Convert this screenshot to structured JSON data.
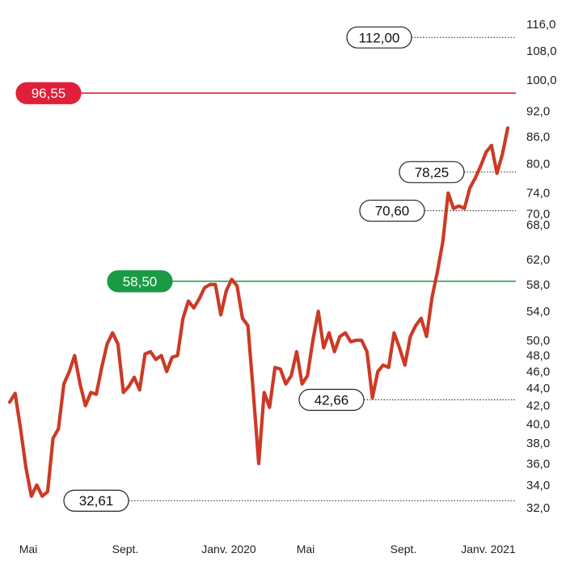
{
  "chart_data": {
    "type": "line",
    "title": "",
    "xlabel": "",
    "ylabel": "",
    "x_tick_labels": [
      "Mai",
      "Sept.",
      "Janv. 2020",
      "Mai",
      "Sept.",
      "Janv. 2021"
    ],
    "y_tick_labels": [
      "116,0",
      "108,0",
      "100,0",
      "92,0",
      "86,0",
      "80,0",
      "74,0",
      "70,0",
      "68,0",
      "62,0",
      "58,0",
      "54,0",
      "50,0",
      "48,0",
      "46,0",
      "44,0",
      "42,0",
      "40,0",
      "38,0",
      "36,0",
      "34,0",
      "32,0"
    ],
    "y_tick_values": [
      116,
      108,
      100,
      92,
      86,
      80,
      74,
      70,
      68,
      62,
      58,
      54,
      50,
      48,
      46,
      44,
      42,
      40,
      38,
      36,
      34,
      32
    ],
    "y_scale": "log",
    "ylim": [
      31.2,
      119
    ],
    "line_color": "#cc3a25",
    "series": [
      {
        "values": [
          42.4,
          43.4,
          39.5,
          35.6,
          33.0,
          34.0,
          33.0,
          33.4,
          38.5,
          39.5,
          44.5,
          46.0,
          48.0,
          44.5,
          42.0,
          43.5,
          43.3,
          46.5,
          49.5,
          51.0,
          49.5,
          43.5,
          44.2,
          45.3,
          43.8,
          48.2,
          48.5,
          47.5,
          48.0,
          46.0,
          47.8,
          48.0,
          53.0,
          55.5,
          54.5,
          55.8,
          57.5,
          58.0,
          58.0,
          53.5,
          57.0,
          58.8,
          57.8,
          53.0,
          52.0,
          43.5,
          36.0,
          43.5,
          41.8,
          46.5,
          46.3,
          44.5,
          45.5,
          48.5,
          44.5,
          45.5,
          50.0,
          54.0,
          49.0,
          51.0,
          48.5,
          50.5,
          51.0,
          49.8,
          50.0,
          50.0,
          48.5,
          42.9,
          46.0,
          46.8,
          46.5,
          51.0,
          49.0,
          46.8,
          50.5,
          52.0,
          53.0,
          50.5,
          56.0,
          60.0,
          65.0,
          74.0,
          71.0,
          71.5,
          71.0,
          75.0,
          77.0,
          79.5,
          82.5,
          84.0,
          78.0,
          82.0,
          88.0
        ]
      }
    ],
    "reference_lines": [
      {
        "value": 112.0,
        "label": "112,00",
        "style": "dotted",
        "color": "#222222",
        "label_fill": "#ffffff"
      },
      {
        "value": 96.55,
        "label": "96,55",
        "style": "solid",
        "color": "#e0203a",
        "label_fill": "#e0203a"
      },
      {
        "value": 78.25,
        "label": "78,25",
        "style": "dotted",
        "color": "#222222",
        "label_fill": "#ffffff"
      },
      {
        "value": 70.6,
        "label": "70,60",
        "style": "dotted",
        "color": "#222222",
        "label_fill": "#ffffff"
      },
      {
        "value": 58.5,
        "label": "58,50",
        "style": "solid",
        "color": "#1a9a45",
        "label_fill": "#1a9a45"
      },
      {
        "value": 42.66,
        "label": "42,66",
        "style": "dotted",
        "color": "#222222",
        "label_fill": "#ffffff"
      },
      {
        "value": 32.61,
        "label": "32,61",
        "style": "dotted",
        "color": "#222222",
        "label_fill": "#ffffff"
      }
    ],
    "grid": false,
    "legend": "none"
  }
}
